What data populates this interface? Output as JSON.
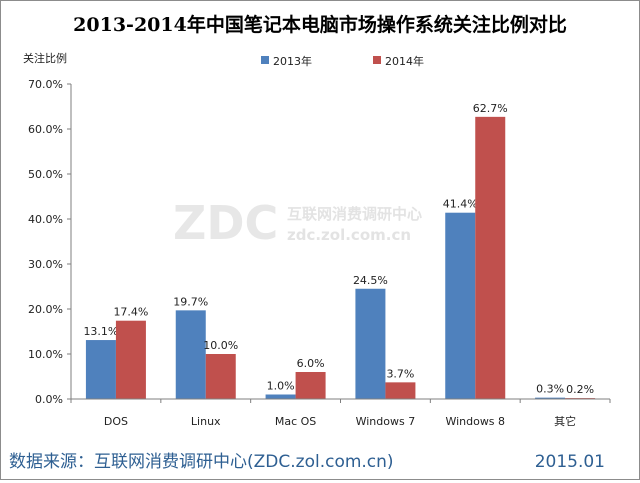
{
  "chart_data": {
    "type": "bar",
    "title": "2013-2014年中国笔记本电脑市场操作系统关注比例对比",
    "ylabel": "关注比例",
    "xlabel": "",
    "ylim": [
      0,
      70
    ],
    "yticks": [
      "0.0%",
      "10.0%",
      "20.0%",
      "30.0%",
      "40.0%",
      "50.0%",
      "60.0%",
      "70.0%"
    ],
    "categories": [
      "DOS",
      "Linux",
      "Mac OS",
      "Windows 7",
      "Windows 8",
      "其它"
    ],
    "series": [
      {
        "name": "2013年",
        "color": "#4f81bd",
        "values": [
          13.1,
          19.7,
          1.0,
          24.5,
          41.4,
          0.3
        ],
        "labels": [
          "13.1%",
          "19.7%",
          "1.0%",
          "24.5%",
          "41.4%",
          "0.3%"
        ]
      },
      {
        "name": "2014年",
        "color": "#c0504d",
        "values": [
          17.4,
          10.0,
          6.0,
          3.7,
          62.7,
          0.2
        ],
        "labels": [
          "17.4%",
          "10.0%",
          "6.0%",
          "3.7%",
          "62.7%",
          "0.2%"
        ]
      }
    ],
    "legend_position": "top-center",
    "grid": false
  },
  "watermark": {
    "logo": "ZDC",
    "cn": "互联网消费调研中心",
    "url": "zdc.zol.com.cn"
  },
  "footer": {
    "source": "数据来源：互联网消费调研中心(ZDC.zol.com.cn)",
    "date": "2015.01"
  }
}
